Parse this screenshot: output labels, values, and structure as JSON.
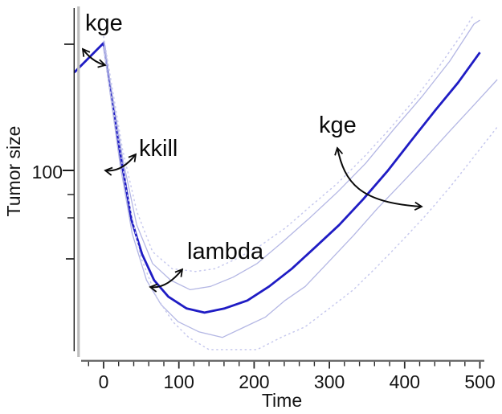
{
  "chart_data": {
    "type": "line",
    "title": "",
    "xlabel": "Time",
    "ylabel": "Tumor size",
    "x_axis": {
      "tick_values": [
        0,
        100,
        200,
        300,
        400,
        500
      ],
      "tick_labels": [
        "0",
        "100",
        "200",
        "300",
        "400",
        "500"
      ],
      "minor_tick_step": 20,
      "range": [
        -40,
        523
      ]
    },
    "y_axis": {
      "scale": "log",
      "tick_labels": [
        "100"
      ],
      "tick_values": [
        100
      ]
    },
    "grid": false,
    "legend": "none",
    "annotation_color": "#0a0a0a",
    "annotations": [
      {
        "id": "kge-initial",
        "text": "kge"
      },
      {
        "id": "kkill",
        "text": "kkill"
      },
      {
        "id": "lambda",
        "text": "lambda"
      },
      {
        "id": "kge-regrowth",
        "text": "kge"
      }
    ],
    "series": [
      {
        "name": "tumor-size-model-prediction",
        "style": "solid-bold",
        "color": "#1f1cc4",
        "x": [
          -39,
          -20,
          0,
          17,
          26,
          37,
          51,
          67,
          86,
          110,
          134,
          161,
          191,
          220,
          250,
          281,
          313,
          345,
          377,
          409,
          441,
          471,
          500
        ],
        "y": [
          293,
          343,
          405,
          155,
          99,
          58,
          40,
          30,
          25,
          22,
          21,
          22,
          24,
          28,
          34,
          43,
          55,
          73,
          99,
          139,
          194,
          262,
          365
        ]
      },
      {
        "name": "inner-upper-band",
        "style": "solid-thin",
        "color": "#b4b7e4",
        "x": [
          0,
          12,
          26,
          44,
          65,
          89,
          115,
          142,
          172,
          204,
          236,
          273,
          311,
          348,
          385,
          423,
          460,
          492,
          500
        ],
        "y": [
          415,
          225,
          111,
          55,
          36,
          30,
          27,
          28,
          31,
          36,
          45,
          59,
          79,
          108,
          156,
          225,
          332,
          498,
          520
        ]
      },
      {
        "name": "inner-lower-band",
        "style": "solid-thin",
        "color": "#b4b7e4",
        "x": [
          0,
          22,
          38,
          57,
          76,
          99,
          127,
          158,
          188,
          215,
          241,
          268,
          300,
          332,
          364,
          396,
          426,
          460,
          491,
          523
        ],
        "y": [
          390,
          106,
          50,
          30,
          23,
          19,
          17,
          16,
          18,
          20,
          24,
          28,
          37,
          49,
          66,
          87,
          113,
          154,
          203,
          271
        ]
      },
      {
        "name": "outer-upper-band-dotted",
        "style": "dotted",
        "color": "#c7c9ee",
        "x": [
          0,
          25,
          44,
          65,
          91,
          122,
          148,
          177,
          209,
          241,
          276,
          311,
          345,
          379,
          412,
          444,
          474,
          492
        ],
        "y": [
          435,
          127,
          64,
          41,
          34,
          33,
          34,
          38,
          44,
          53,
          68,
          87,
          115,
          156,
          215,
          306,
          436,
          554
        ]
      },
      {
        "name": "outer-lower-band-dotted",
        "style": "dotted",
        "color": "#c7c9ee",
        "x": [
          0,
          31,
          49,
          70,
          92,
          113,
          140,
          172,
          204,
          236,
          268,
          300,
          332,
          364,
          396,
          428,
          460,
          491,
          523
        ],
        "y": [
          375,
          78,
          39,
          25,
          19,
          16,
          14,
          14,
          14,
          16,
          18,
          22,
          27,
          35,
          46,
          61,
          83,
          115,
          161
        ]
      }
    ]
  }
}
